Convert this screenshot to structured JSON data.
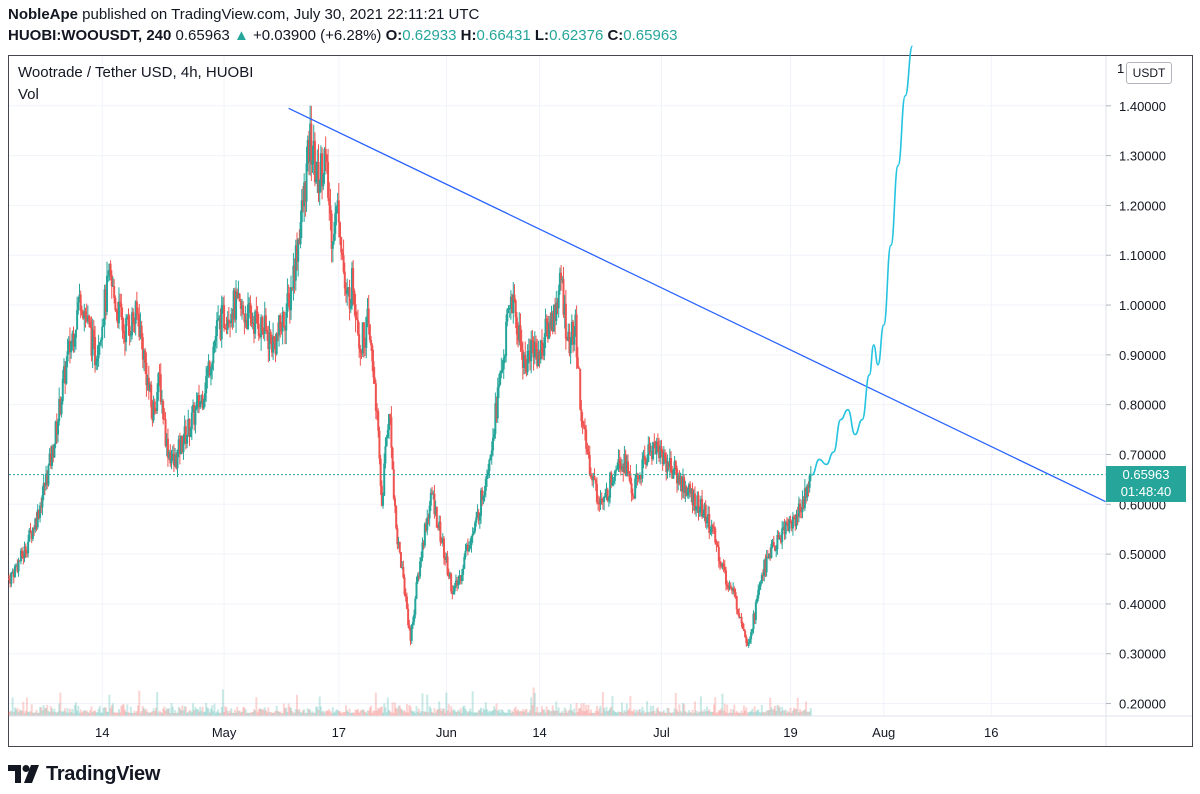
{
  "header": {
    "author": "NobleApe",
    "published": " published on TradingView.com, July 30, 2021 22:11:21 UTC",
    "symbol": "HUOBI:WOOUSDT, 240",
    "last": "0.65963",
    "arrow": "▲",
    "change": "+0.03900 (+6.28%)",
    "o_label": "O:",
    "o": "0.62933",
    "h_label": "H:",
    "h": "0.66431",
    "l_label": "L:",
    "l": "0.62376",
    "c_label": "C:",
    "c": "0.65963"
  },
  "legend": {
    "title": "Wootrade / Tether USD, 4h, HUOBI",
    "volume": "Vol"
  },
  "price_axis": {
    "currency": "USDT",
    "current_price": "0.65963",
    "countdown": "01:48:40",
    "top_partial": "1"
  },
  "branding": {
    "name": "TradingView"
  },
  "colors": {
    "up": "#26a69a",
    "down": "#ef5350",
    "trendline": "#2962ff",
    "projection": "#24c3e0",
    "grid": "#f0f3fa",
    "text": "#131722"
  },
  "chart_data": {
    "type": "candlestick",
    "title": "Wootrade / Tether USD, 4h, HUOBI",
    "timeframe": "4h",
    "y_ticks": [
      0.2,
      0.3,
      0.4,
      0.5,
      0.6,
      0.7,
      0.8,
      0.9,
      1.0,
      1.1,
      1.2,
      1.3,
      1.4
    ],
    "y_tick_labels": [
      "0.20000",
      "0.30000",
      "0.40000",
      "0.50000",
      "0.60000",
      "0.70000",
      "0.80000",
      "0.90000",
      "1.00000",
      "1.10000",
      "1.20000",
      "1.30000",
      "1.40000"
    ],
    "ylim": [
      0.175,
      1.5
    ],
    "xlim_days": [
      -13,
      140
    ],
    "x_ticks": [
      {
        "label": "14",
        "day": 0
      },
      {
        "label": "May",
        "day": 17
      },
      {
        "label": "17",
        "day": 33
      },
      {
        "label": "Jun",
        "day": 48
      },
      {
        "label": "14",
        "day": 61
      },
      {
        "label": "Jul",
        "day": 78
      },
      {
        "label": "19",
        "day": 96
      },
      {
        "label": "Aug",
        "day": 109
      },
      {
        "label": "16",
        "day": 124
      }
    ],
    "last_price": 0.65963,
    "price_path": [
      [
        -13,
        0.45
      ],
      [
        -11,
        0.5
      ],
      [
        -9,
        0.58
      ],
      [
        -7,
        0.7
      ],
      [
        -5,
        0.88
      ],
      [
        -3,
        1.02
      ],
      [
        -1,
        0.9
      ],
      [
        1,
        1.05
      ],
      [
        3,
        0.95
      ],
      [
        5,
        0.98
      ],
      [
        6,
        0.88
      ],
      [
        7,
        0.78
      ],
      [
        8,
        0.85
      ],
      [
        9,
        0.72
      ],
      [
        10,
        0.68
      ],
      [
        11,
        0.72
      ],
      [
        12,
        0.75
      ],
      [
        14,
        0.82
      ],
      [
        16,
        0.95
      ],
      [
        18,
        1.0
      ],
      [
        20,
        0.98
      ],
      [
        22,
        0.96
      ],
      [
        24,
        0.92
      ],
      [
        26,
        1.0
      ],
      [
        28,
        1.2
      ],
      [
        29,
        1.33
      ],
      [
        30,
        1.25
      ],
      [
        31,
        1.3
      ],
      [
        32,
        1.15
      ],
      [
        33,
        1.2
      ],
      [
        34,
        1.0
      ],
      [
        35,
        1.05
      ],
      [
        36,
        0.92
      ],
      [
        37,
        0.96
      ],
      [
        38,
        0.85
      ],
      [
        39,
        0.6
      ],
      [
        40,
        0.8
      ],
      [
        41,
        0.55
      ],
      [
        42,
        0.45
      ],
      [
        43,
        0.33
      ],
      [
        44,
        0.45
      ],
      [
        45,
        0.55
      ],
      [
        46,
        0.62
      ],
      [
        47,
        0.55
      ],
      [
        48,
        0.48
      ],
      [
        49,
        0.42
      ],
      [
        50,
        0.46
      ],
      [
        51,
        0.52
      ],
      [
        52,
        0.55
      ],
      [
        53,
        0.62
      ],
      [
        54,
        0.7
      ],
      [
        55,
        0.8
      ],
      [
        56,
        0.9
      ],
      [
        57,
        1.02
      ],
      [
        58,
        0.95
      ],
      [
        59,
        0.88
      ],
      [
        60,
        0.92
      ],
      [
        61,
        0.9
      ],
      [
        62,
        0.95
      ],
      [
        63,
        0.98
      ],
      [
        64,
        1.05
      ],
      [
        65,
        0.92
      ],
      [
        66,
        0.95
      ],
      [
        67,
        0.75
      ],
      [
        68,
        0.68
      ],
      [
        69,
        0.62
      ],
      [
        70,
        0.6
      ],
      [
        71,
        0.65
      ],
      [
        72,
        0.7
      ],
      [
        73,
        0.68
      ],
      [
        74,
        0.62
      ],
      [
        75,
        0.66
      ],
      [
        76,
        0.7
      ],
      [
        77,
        0.72
      ],
      [
        78,
        0.7
      ],
      [
        79,
        0.68
      ],
      [
        80,
        0.66
      ],
      [
        81,
        0.64
      ],
      [
        82,
        0.62
      ],
      [
        83,
        0.6
      ],
      [
        84,
        0.58
      ],
      [
        85,
        0.55
      ],
      [
        86,
        0.5
      ],
      [
        87,
        0.45
      ],
      [
        88,
        0.42
      ],
      [
        89,
        0.38
      ],
      [
        90,
        0.32
      ],
      [
        91,
        0.38
      ],
      [
        92,
        0.46
      ],
      [
        93,
        0.5
      ],
      [
        94,
        0.52
      ],
      [
        95,
        0.55
      ],
      [
        96,
        0.56
      ],
      [
        97,
        0.58
      ],
      [
        98,
        0.62
      ],
      [
        99,
        0.66
      ]
    ],
    "volume_max": 0.4,
    "trendline": [
      [
        26,
        1.395
      ],
      [
        140,
        0.605
      ]
    ],
    "projection": [
      [
        99,
        0.659
      ],
      [
        100,
        0.69
      ],
      [
        101,
        0.68
      ],
      [
        102,
        0.705
      ],
      [
        103,
        0.77
      ],
      [
        104,
        0.79
      ],
      [
        105,
        0.74
      ],
      [
        106,
        0.77
      ],
      [
        107,
        0.86
      ],
      [
        107.6,
        0.92
      ],
      [
        108.2,
        0.88
      ],
      [
        109,
        0.96
      ],
      [
        110,
        1.12
      ],
      [
        111,
        1.28
      ],
      [
        112,
        1.42
      ],
      [
        113,
        1.52
      ]
    ]
  }
}
